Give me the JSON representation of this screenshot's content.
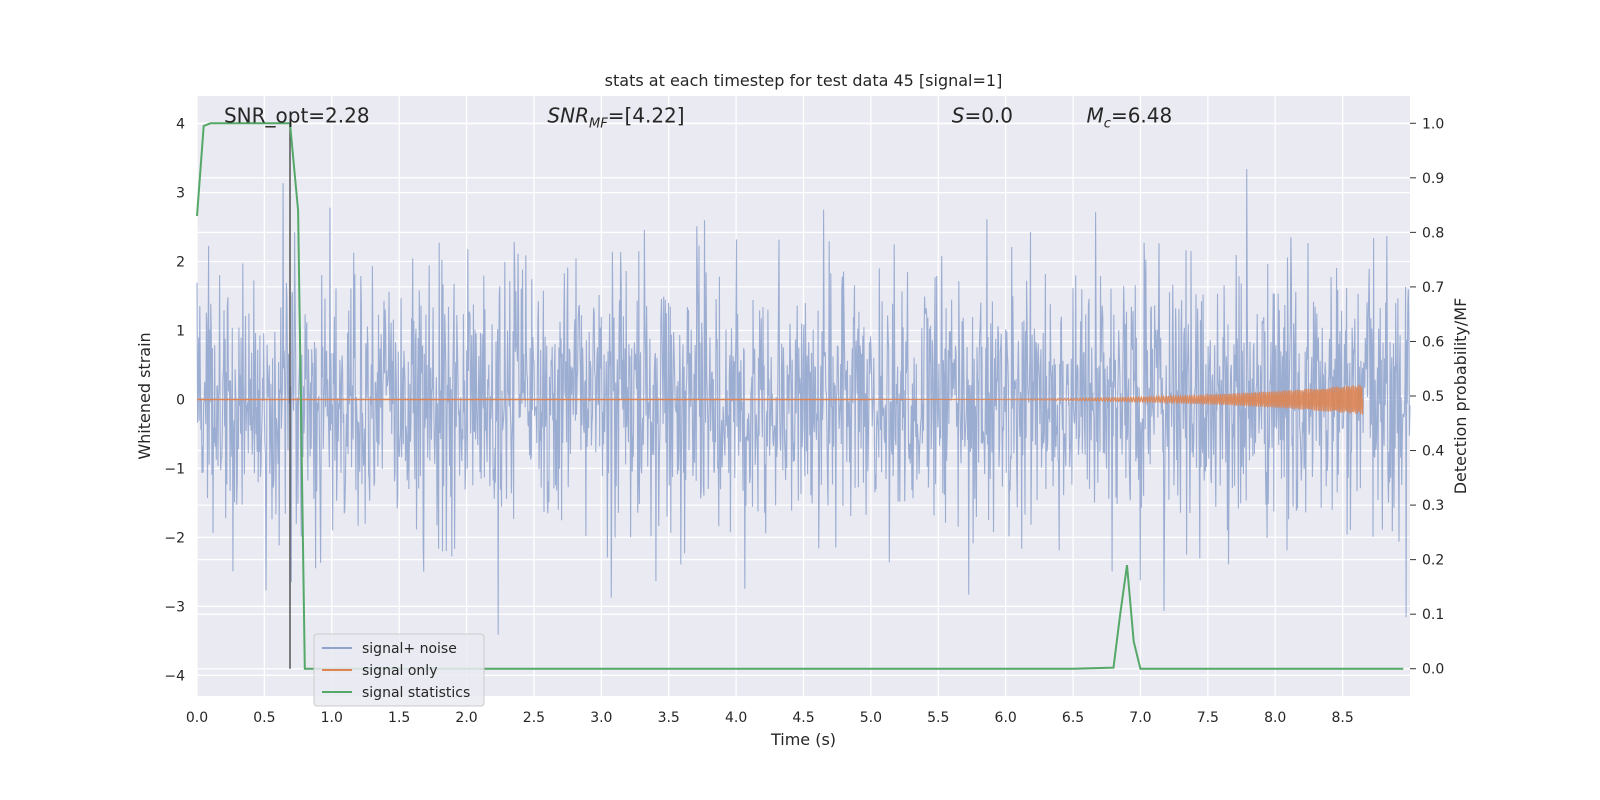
{
  "chart_data": {
    "type": "line",
    "title": "stats at each timestep for test data 45 [signal=1]",
    "xlabel": "Time (s)",
    "ylabel": "Whitened strain",
    "y2label": "Detection probability/MF",
    "xlim": [
      0.0,
      9.0
    ],
    "ylim": [
      -4.3,
      4.4
    ],
    "y2lim": [
      -0.05,
      1.05
    ],
    "grid": true,
    "legend_position": "lower-left",
    "x_ticks": [
      0.0,
      0.5,
      1.0,
      1.5,
      2.0,
      2.5,
      3.0,
      3.5,
      4.0,
      4.5,
      5.0,
      5.5,
      6.0,
      6.5,
      7.0,
      7.5,
      8.0,
      8.5
    ],
    "x_tick_labels": [
      "0.0",
      "0.5",
      "1.0",
      "1.5",
      "2.0",
      "2.5",
      "3.0",
      "3.5",
      "4.0",
      "4.5",
      "5.0",
      "5.5",
      "6.0",
      "6.5",
      "7.0",
      "7.5",
      "8.0",
      "8.5"
    ],
    "y_ticks": [
      -4,
      -3,
      -2,
      -1,
      0,
      1,
      2,
      3,
      4
    ],
    "y_tick_labels": [
      "−4",
      "−3",
      "−2",
      "−1",
      "0",
      "1",
      "2",
      "3",
      "4"
    ],
    "y2_ticks": [
      0.0,
      0.1,
      0.2,
      0.3,
      0.4,
      0.5,
      0.6,
      0.7,
      0.8,
      0.9,
      1.0
    ],
    "y2_tick_labels": [
      "0.0",
      "0.1",
      "0.2",
      "0.3",
      "0.4",
      "0.5",
      "0.6",
      "0.7",
      "0.8",
      "0.9",
      "1.0"
    ],
    "annotations": [
      {
        "text": "SNR_opt=2.28",
        "x": 0.2,
        "y": 4.1
      },
      {
        "text": "SNR_MF=[4.22]",
        "x": 2.6,
        "y": 4.1
      },
      {
        "text": "S=0.0",
        "x": 5.6,
        "y": 4.1
      },
      {
        "text": "M_c=6.48",
        "x": 6.6,
        "y": 4.1
      }
    ],
    "vline_x": 0.69,
    "series": [
      {
        "name": "signal+ noise",
        "color": "#8ea2cc",
        "description_envelope": {
          "typical_abs": 1.6,
          "peak_max": 4.0,
          "peak_min": -3.9
        }
      },
      {
        "name": "signal only",
        "color": "#dd8452",
        "chirp": {
          "start": 5.0,
          "end": 8.65,
          "max_amplitude": 0.22
        }
      },
      {
        "name": "signal statistics",
        "color": "#55a868",
        "axis": "right",
        "x": [
          0.0,
          0.05,
          0.1,
          0.2,
          0.3,
          0.4,
          0.5,
          0.6,
          0.69,
          0.75,
          0.8,
          0.9,
          1.0,
          2.0,
          3.0,
          4.0,
          5.0,
          5.6,
          5.7,
          6.0,
          6.5,
          6.8,
          6.85,
          6.9,
          6.95,
          7.0,
          7.5,
          8.0,
          8.5,
          8.95
        ],
        "y": [
          0.83,
          0.995,
          1.0,
          1.0,
          1.0,
          1.0,
          1.0,
          1.0,
          1.0,
          0.84,
          0.0,
          0.0,
          0.0,
          0.0,
          0.0,
          0.0,
          0.0,
          0.0,
          0.0,
          0.0,
          0.0,
          0.002,
          0.1,
          0.19,
          0.05,
          0.0,
          0.0,
          0.0,
          0.0,
          0.0
        ]
      }
    ]
  },
  "legend": {
    "items": [
      {
        "label": "signal+ noise",
        "color": "#8ea2cc"
      },
      {
        "label": "signal only",
        "color": "#dd8452"
      },
      {
        "label": "signal statistics",
        "color": "#55a868"
      }
    ]
  }
}
